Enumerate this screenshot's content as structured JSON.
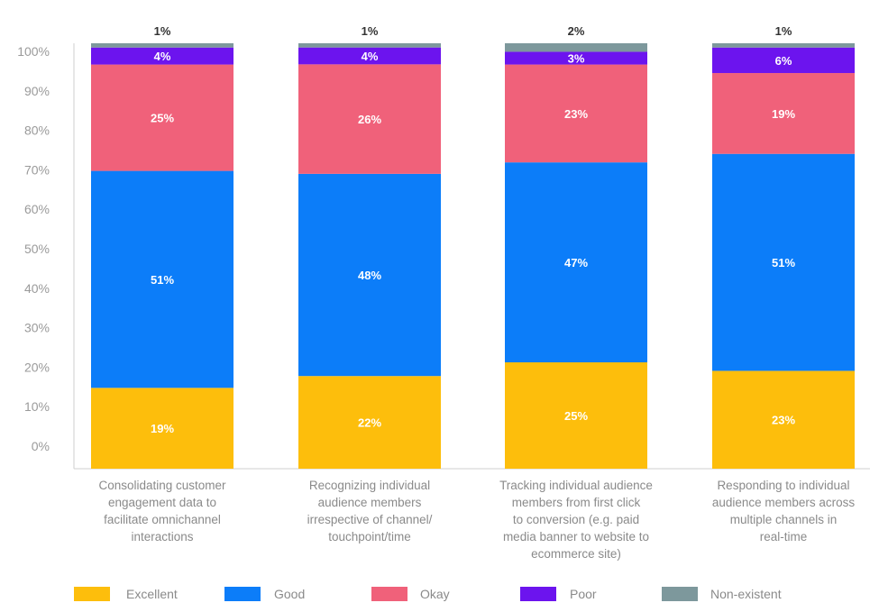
{
  "chart_data": {
    "type": "bar",
    "stacked": true,
    "title": "",
    "xlabel": "",
    "ylabel": "",
    "ylim": [
      0,
      100
    ],
    "y_ticks": [
      "0%",
      "10%",
      "20%",
      "30%",
      "40%",
      "50%",
      "60%",
      "70%",
      "80%",
      "90%",
      "100%"
    ],
    "legend_position": "bottom",
    "grid": false,
    "categories": [
      [
        "Consolidating customer",
        "engagement data to",
        "facilitate omnichannel",
        "interactions"
      ],
      [
        "Recognizing individual",
        "audience members",
        "irrespective of channel/",
        "touchpoint/time"
      ],
      [
        "Tracking individual audience",
        "members from first click",
        "to conversion (e.g. paid",
        "media banner to website to",
        "ecommerce site)"
      ],
      [
        "Responding to individual",
        "audience members across",
        "multiple channels in",
        "real-time"
      ]
    ],
    "series": [
      {
        "name": "Excellent",
        "color": "#FDBE0C",
        "values": [
          19,
          22,
          25,
          23
        ],
        "labels": [
          "19%",
          "22%",
          "25%",
          "23%"
        ]
      },
      {
        "name": "Good",
        "color": "#0C7DF9",
        "values": [
          51,
          48,
          47,
          51
        ],
        "labels": [
          "51%",
          "48%",
          "47%",
          "51%"
        ]
      },
      {
        "name": "Okay",
        "color": "#F0617A",
        "values": [
          25,
          26,
          23,
          19
        ],
        "labels": [
          "25%",
          "26%",
          "23%",
          "19%"
        ]
      },
      {
        "name": "Poor",
        "color": "#6C14EE",
        "values": [
          4,
          4,
          3,
          6
        ],
        "labels": [
          "4%",
          "4%",
          "3%",
          "6%"
        ]
      },
      {
        "name": "Non-existent",
        "color": "#7D989C",
        "values": [
          1,
          1,
          2,
          1
        ],
        "labels": [
          "1%",
          "1%",
          "2%",
          "1%"
        ]
      }
    ]
  }
}
